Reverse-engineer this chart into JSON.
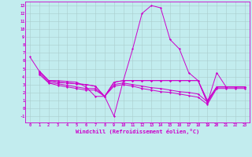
{
  "xlabel": "Windchill (Refroidissement éolien,°C)",
  "bg_color": "#c2ecee",
  "line_color": "#cc00cc",
  "grid_color": "#aacccc",
  "x_ticks": [
    0,
    1,
    2,
    3,
    4,
    5,
    6,
    7,
    8,
    9,
    10,
    11,
    12,
    13,
    14,
    15,
    16,
    17,
    18,
    19,
    20,
    21,
    22,
    23
  ],
  "y_ticks": [
    -1,
    0,
    1,
    2,
    3,
    4,
    5,
    6,
    7,
    8,
    9,
    10,
    11,
    12,
    13
  ],
  "xlim": [
    -0.5,
    23.5
  ],
  "ylim": [
    -1.8,
    13.5
  ],
  "lines": [
    {
      "x": [
        0,
        1,
        2,
        3,
        4,
        5,
        6,
        7,
        8,
        9,
        10,
        11,
        12,
        13,
        14,
        15,
        16,
        17,
        18,
        19,
        20,
        21,
        22,
        23
      ],
      "y": [
        6.5,
        4.7,
        3.5,
        3.5,
        3.4,
        3.3,
        2.7,
        1.5,
        1.5,
        -1.0,
        3.5,
        7.5,
        12.0,
        13.0,
        12.7,
        8.7,
        7.5,
        4.5,
        3.5,
        1.0,
        2.7,
        2.7,
        2.7,
        2.7
      ]
    },
    {
      "x": [
        1,
        2,
        3,
        4,
        5,
        6,
        7,
        8,
        9,
        10,
        11,
        12,
        13,
        14,
        15,
        16,
        17,
        18,
        19,
        20,
        21,
        22,
        23
      ],
      "y": [
        4.7,
        3.5,
        3.3,
        3.2,
        3.1,
        3.0,
        2.8,
        1.5,
        3.3,
        3.5,
        3.5,
        3.5,
        3.5,
        3.5,
        3.5,
        3.5,
        3.5,
        3.5,
        0.7,
        4.5,
        2.7,
        2.7,
        2.7
      ]
    },
    {
      "x": [
        1,
        2,
        3,
        4,
        5,
        6,
        7,
        8,
        9,
        10,
        11,
        12,
        13,
        14,
        15,
        16,
        17,
        18,
        19,
        20,
        21,
        22,
        23
      ],
      "y": [
        4.7,
        3.5,
        3.3,
        3.2,
        3.1,
        3.0,
        2.8,
        1.5,
        3.3,
        3.5,
        3.5,
        3.5,
        3.5,
        3.5,
        3.5,
        3.5,
        3.5,
        3.5,
        0.7,
        2.7,
        2.7,
        2.7,
        2.7
      ]
    },
    {
      "x": [
        1,
        2,
        3,
        4,
        5,
        6,
        7,
        8,
        9,
        10,
        11,
        12,
        13,
        14,
        15,
        16,
        17,
        18,
        19,
        20,
        21,
        22,
        23
      ],
      "y": [
        4.5,
        3.3,
        3.1,
        2.9,
        2.7,
        2.5,
        2.5,
        1.5,
        3.0,
        3.2,
        3.0,
        2.8,
        2.6,
        2.5,
        2.3,
        2.1,
        2.0,
        1.8,
        0.8,
        2.7,
        2.7,
        2.7,
        2.7
      ]
    },
    {
      "x": [
        1,
        2,
        3,
        4,
        5,
        6,
        7,
        8,
        9,
        10,
        11,
        12,
        13,
        14,
        15,
        16,
        17,
        18,
        19,
        20,
        21,
        22,
        23
      ],
      "y": [
        4.3,
        3.2,
        2.9,
        2.7,
        2.5,
        2.3,
        2.3,
        1.5,
        2.8,
        3.0,
        2.8,
        2.5,
        2.3,
        2.1,
        2.0,
        1.8,
        1.6,
        1.4,
        0.5,
        2.5,
        2.5,
        2.5,
        2.5
      ]
    }
  ]
}
